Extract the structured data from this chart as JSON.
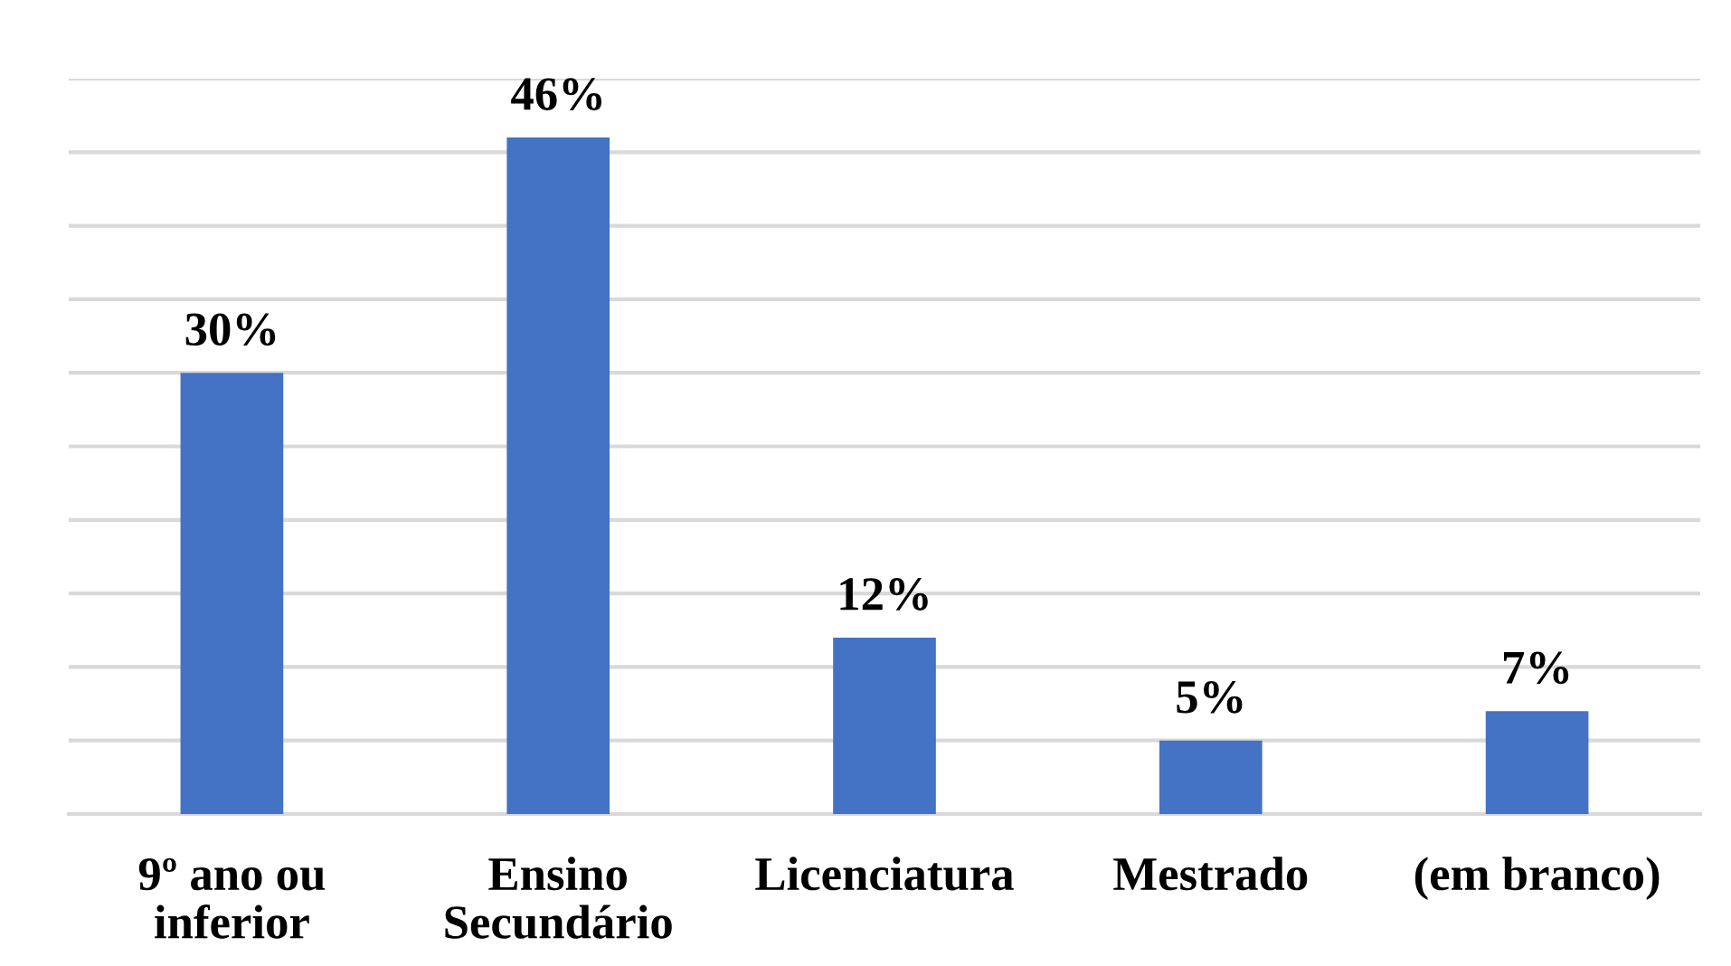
{
  "chart_data": {
    "type": "bar",
    "categories": [
      "9º ano ou\ninferior",
      "Ensino\nSecundário",
      "Licenciatura",
      "Mestrado",
      "(em branco)"
    ],
    "values": [
      30,
      46,
      12,
      5,
      7
    ],
    "value_labels": [
      "30%",
      "46%",
      "12%",
      "5%",
      "7%"
    ],
    "color": "#4472c4",
    "ylim": [
      0,
      50
    ],
    "yticks": [
      {
        "value": 0,
        "label": null
      },
      {
        "value": 5,
        "label": null
      },
      {
        "value": 10,
        "label": null
      },
      {
        "value": 15,
        "label": null
      },
      {
        "value": 20,
        "label": null
      },
      {
        "value": 25,
        "label": null
      },
      {
        "value": 30,
        "label": null
      },
      {
        "value": 35,
        "label": null
      },
      {
        "value": 40,
        "label": null
      },
      {
        "value": 45,
        "label": null
      },
      {
        "value": 50,
        "label": null
      }
    ],
    "grid": "y",
    "tick_labels": "x"
  }
}
